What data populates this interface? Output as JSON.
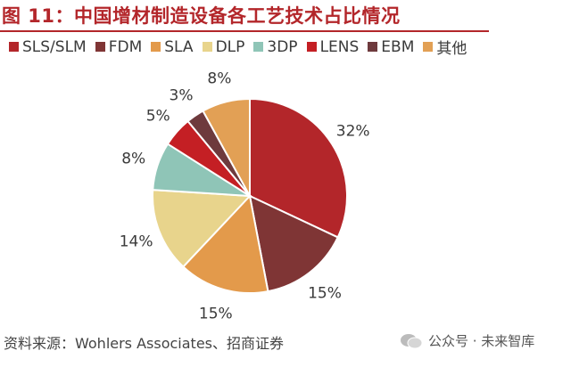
{
  "title": "图 11：中国增材制造设备各工艺技术占比情况",
  "source": "资料来源：Wohlers Associates、招商证券",
  "watermark": "公众号 · 未来智库",
  "chart_data": {
    "type": "pie",
    "title": "图 11：中国增材制造设备各工艺技术占比情况",
    "start": "12 o'clock",
    "direction": "clockwise",
    "legend_position": "top",
    "slices": [
      {
        "name": "SLS/SLM",
        "value": 32,
        "label": "32%",
        "color": "#b3262a"
      },
      {
        "name": "FDM",
        "value": 15,
        "label": "15%",
        "color": "#7f3535"
      },
      {
        "name": "SLA",
        "value": 15,
        "label": "15%",
        "color": "#e39a4b"
      },
      {
        "name": "DLP",
        "value": 14,
        "label": "14%",
        "color": "#e8d48c"
      },
      {
        "name": "3DP",
        "value": 8,
        "label": "8%",
        "color": "#8fc5b7"
      },
      {
        "name": "LENS",
        "value": 5,
        "label": "5%",
        "color": "#c41f24"
      },
      {
        "name": "EBM",
        "value": 3,
        "label": "3%",
        "color": "#6e3a3d"
      },
      {
        "name": "其他",
        "value": 8,
        "label": "8%",
        "color": "#e2a055"
      }
    ]
  }
}
